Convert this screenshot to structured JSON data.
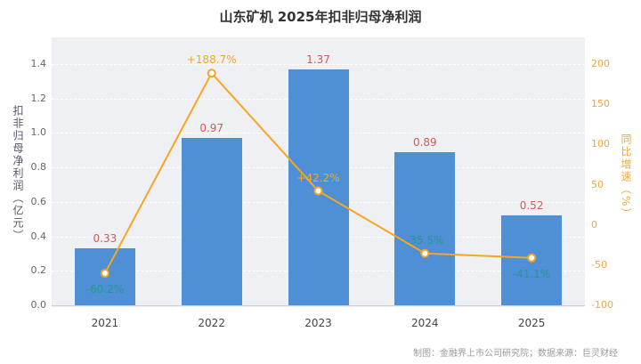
{
  "title": "山东矿机 2025年扣非归母净利润",
  "footer": "制图：金融界上市公司研究院；数据来源：巨灵财经",
  "chart_data": {
    "type": "bar",
    "subtype": "bar-line-combo",
    "categories": [
      "2021",
      "2022",
      "2023",
      "2024",
      "2025"
    ],
    "series": [
      {
        "name": "扣非归母净利润",
        "type": "bar",
        "unit": "亿元",
        "values": [
          0.33,
          0.97,
          1.37,
          0.89,
          0.52
        ],
        "value_labels": [
          "0.33",
          "0.97",
          "1.37",
          "0.89",
          "0.52"
        ],
        "color": "#4e8fd5",
        "label_color": "#d35b4f"
      },
      {
        "name": "同比增速",
        "type": "line",
        "unit": "%",
        "values": [
          -60.2,
          188.7,
          42.2,
          -35.5,
          -41.1
        ],
        "point_labels": [
          "-60.2%",
          "+188.7%",
          "+42.2%",
          "-35.5%",
          "-41.1%"
        ],
        "label_positions": [
          "below",
          "above",
          "above",
          "above",
          "below"
        ],
        "color": "#f5a623",
        "positive_label_color": "#f5a623",
        "negative_label_color": "#24998d"
      }
    ],
    "left_axis": {
      "title": "扣非归母净利润（亿元）",
      "min": 0,
      "max": 1.4,
      "ticks": [
        0.0,
        0.2,
        0.4,
        0.6,
        0.8,
        1.0,
        1.2,
        1.4
      ],
      "tick_color": "#666666"
    },
    "right_axis": {
      "title": "同比增速（%）",
      "min": -100,
      "max": 200,
      "ticks": [
        -100,
        -50,
        0,
        50,
        100,
        150,
        200
      ],
      "tick_color": "#f0a63c",
      "title_color": "#f0a63c"
    },
    "grid": true,
    "grid_color": "#ffffff",
    "axis_line_color": "#cfcfcf",
    "plot_bg": "#eef0f3",
    "legend": "none"
  }
}
